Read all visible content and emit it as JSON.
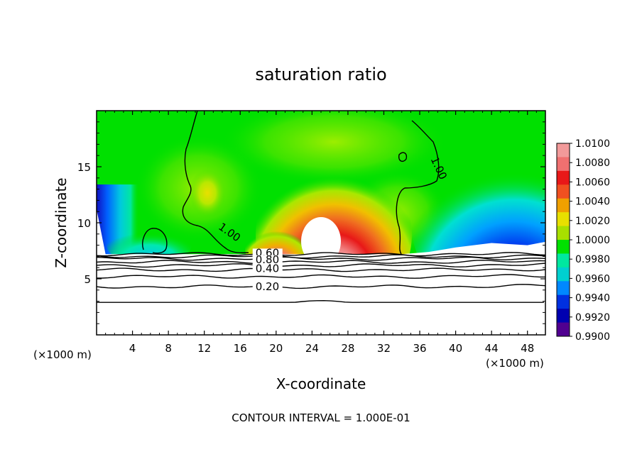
{
  "chart_data": {
    "type": "heatmap",
    "title": "saturation ratio",
    "xlabel": "X-coordinate",
    "ylabel": "Z-coordinate",
    "x_unit_left": "(×1000 m)",
    "x_unit_right": "(×1000 m)",
    "footer": "CONTOUR INTERVAL = 1.000E-01",
    "xlim": [
      0,
      50
    ],
    "ylim": [
      0,
      20
    ],
    "x_ticks": [
      4,
      8,
      12,
      16,
      20,
      24,
      28,
      32,
      36,
      40,
      44,
      48
    ],
    "y_ticks": [
      5,
      10,
      15
    ],
    "grid": false,
    "colorbar": {
      "placement": "right",
      "min": 0.99,
      "max": 1.01,
      "labels": [
        "1.0100",
        "1.0080",
        "1.0060",
        "1.0040",
        "1.0020",
        "1.0000",
        "0.9980",
        "0.9960",
        "0.9940",
        "0.9920",
        "0.9900"
      ],
      "colors": [
        "#f29a9a",
        "#f07070",
        "#e81818",
        "#f05020",
        "#f0a000",
        "#e8e000",
        "#a8e000",
        "#00e000",
        "#00e8a0",
        "#00d0d0",
        "#0088ff",
        "#0030e0",
        "#0000b0",
        "#500090"
      ]
    },
    "contour_labels": [
      {
        "text": "1.00",
        "x": 13.5,
        "z": 9.5
      },
      {
        "text": "1.00",
        "x": 37.2,
        "z": 15.7
      },
      {
        "text": "0.60",
        "x": 17.7,
        "z": 7.0
      },
      {
        "text": "0.80",
        "x": 17.7,
        "z": 6.4
      },
      {
        "text": "0.40",
        "x": 17.7,
        "z": 5.6
      },
      {
        "text": "0.20",
        "x": 17.7,
        "z": 4.0
      }
    ],
    "lower_contours": [
      {
        "level": 0.2,
        "z": 4.3
      },
      {
        "level": 0.3,
        "z": 5.2
      },
      {
        "level": 0.4,
        "z": 5.8
      },
      {
        "level": 0.5,
        "z": 6.2
      },
      {
        "level": 0.6,
        "z": 6.5
      },
      {
        "level": 0.7,
        "z": 6.8
      },
      {
        "level": 0.8,
        "z": 7.0
      },
      {
        "level": 0.9,
        "z": 7.2
      }
    ],
    "base_contour_z": 2.9,
    "field_top_profile": [
      {
        "x": 0,
        "z": 11.2
      },
      {
        "x": 1,
        "z": 7.2
      },
      {
        "x": 16,
        "z": 7.2
      },
      {
        "x": 22,
        "z": 7.2
      },
      {
        "x": 34,
        "z": 7.2
      },
      {
        "x": 37,
        "z": 7.4
      },
      {
        "x": 40,
        "z": 7.8
      },
      {
        "x": 44,
        "z": 8.2
      },
      {
        "x": 48,
        "z": 8.0
      },
      {
        "x": 50,
        "z": 8.3
      }
    ]
  }
}
